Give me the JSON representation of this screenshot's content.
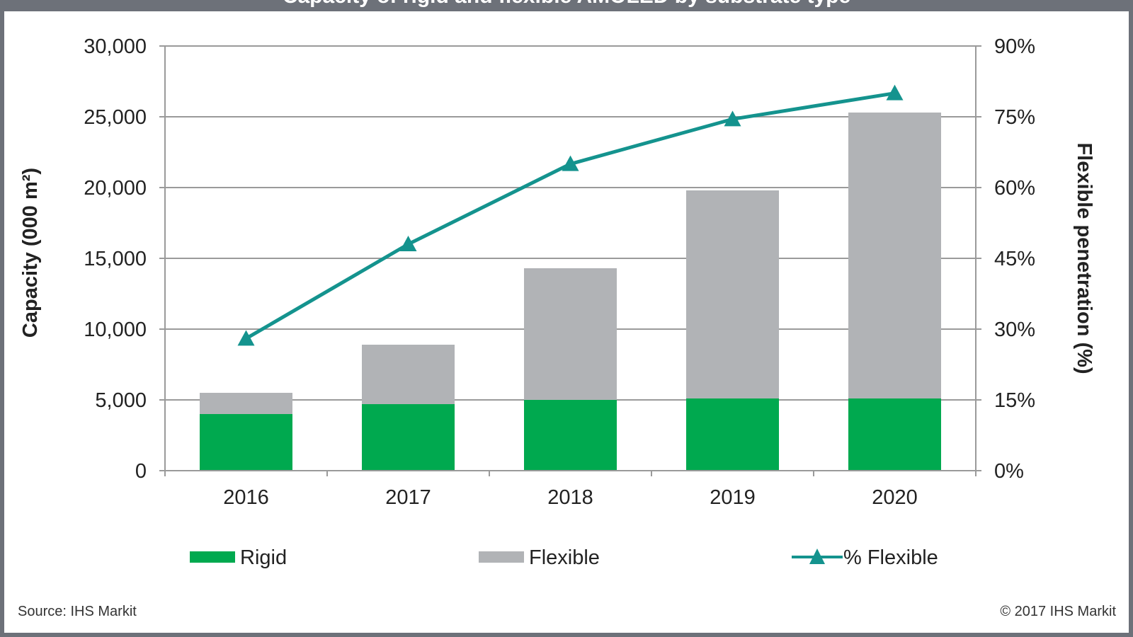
{
  "chart_data": {
    "type": "bar",
    "title": "Capacity of rigid and flexible AMOLED by substrate type",
    "categories": [
      "2016",
      "2017",
      "2018",
      "2019",
      "2020"
    ],
    "series": [
      {
        "name": "Rigid",
        "kind": "stacked-bar",
        "axis": "left",
        "values": [
          4000,
          4700,
          5000,
          5100,
          5100
        ]
      },
      {
        "name": "Flexible",
        "kind": "stacked-bar",
        "axis": "left",
        "values": [
          1500,
          4200,
          9300,
          14700,
          20200
        ]
      },
      {
        "name": "% Flexible",
        "kind": "line",
        "axis": "right",
        "values": [
          28,
          48,
          65,
          74.5,
          80
        ]
      }
    ],
    "ylabel": "Capacity (000 m²)",
    "ylim": [
      0,
      30000
    ],
    "yticks": [
      "30,000",
      "25,000",
      "20,000",
      "15,000",
      "10,000",
      "5,000",
      "0"
    ],
    "y2label": "Flexible penetration (%)",
    "y2lim": [
      0,
      90
    ],
    "y2ticks": [
      "90%",
      "75%",
      "60%",
      "45%",
      "30%",
      "15%",
      "0%"
    ],
    "legend": [
      "Rigid",
      "Flexible",
      "% Flexible"
    ],
    "legend_position": "bottom",
    "grid": true
  },
  "footer": {
    "source": "Source: IHS Markit",
    "copyright": "© 2017 IHS Markit"
  },
  "colors": {
    "rigid": "#00a94f",
    "flexible": "#b1b3b6",
    "line": "#14938e",
    "grid": "#9a9a9a",
    "frame": "#6d7179"
  }
}
